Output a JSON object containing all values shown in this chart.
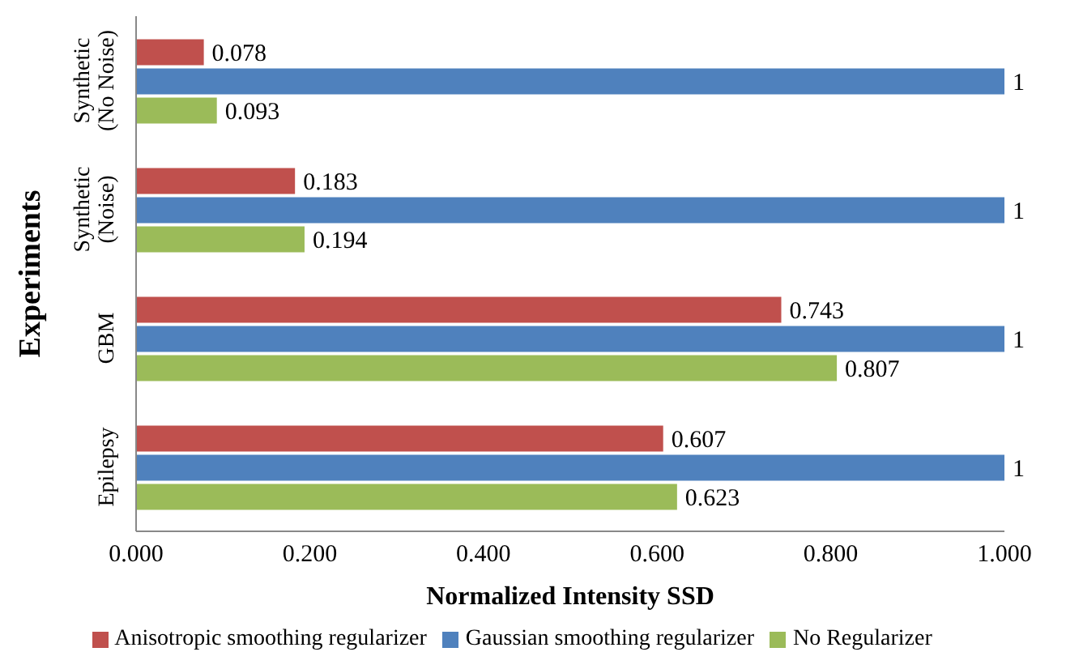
{
  "chart_data": {
    "type": "bar",
    "orientation": "horizontal",
    "xlabel": "Normalized Intensity SSD",
    "ylabel": "Experiments",
    "categories": [
      "Synthetic (No Noise)",
      "Synthetic (Noise)",
      "GBM",
      "Epilepsy"
    ],
    "series": [
      {
        "name": "Anisotropic smoothing regularizer",
        "color": "#c0504d",
        "values": [
          0.078,
          0.183,
          0.743,
          0.607
        ]
      },
      {
        "name": "Gaussian smoothing regularizer",
        "color": "#4f81bd",
        "values": [
          1,
          1,
          1,
          1
        ]
      },
      {
        "name": "No Regularizer",
        "color": "#9bbb59",
        "values": [
          0.093,
          0.194,
          0.807,
          0.623
        ]
      }
    ],
    "xlim": [
      0,
      1
    ],
    "xticks": [
      {
        "value": 0,
        "label": "0.000"
      },
      {
        "value": 0.2,
        "label": "0.200"
      },
      {
        "value": 0.4,
        "label": "0.400"
      },
      {
        "value": 0.6,
        "label": "0.600"
      },
      {
        "value": 0.8,
        "label": "0.800"
      },
      {
        "value": 1,
        "label": "1.000"
      }
    ],
    "grid": false,
    "legend": "bottom",
    "data_labels": true
  }
}
